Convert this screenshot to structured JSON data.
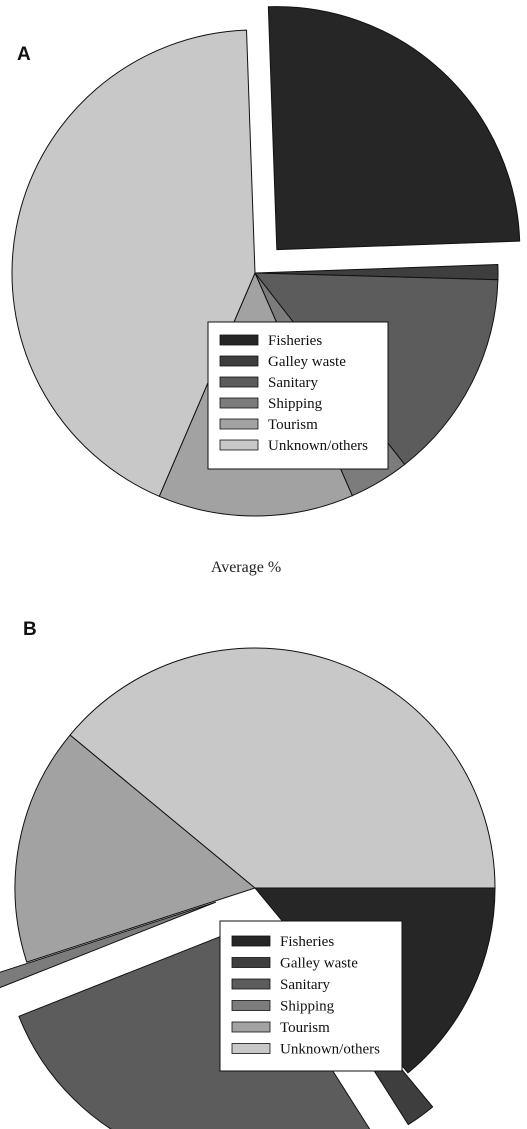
{
  "caption": "Average %",
  "legend": {
    "entries": [
      "Fisheries",
      "Galley waste",
      "Sanitary",
      "Shipping",
      "Tourism",
      "Unknown/others"
    ]
  },
  "colors": {
    "Fisheries": "#262626",
    "Galley waste": "#3e3e3e",
    "Sanitary": "#5c5c5c",
    "Shipping": "#7c7c7c",
    "Tourism": "#a2a2a2",
    "Unknown/others": "#c8c8c8"
  },
  "chart_data": [
    {
      "type": "pie",
      "panel_label": "A",
      "series": [
        {
          "name": "Fisheries",
          "value": 25,
          "exploded": true
        },
        {
          "name": "Galley waste",
          "value": 1,
          "exploded": false
        },
        {
          "name": "Sanitary",
          "value": 14,
          "exploded": false
        },
        {
          "name": "Shipping",
          "value": 4,
          "exploded": false
        },
        {
          "name": "Tourism",
          "value": 13,
          "exploded": false
        },
        {
          "name": "Unknown/others",
          "value": 43,
          "exploded": false
        }
      ],
      "start_angle_deg": -92,
      "legend_placement": "lower-right"
    },
    {
      "type": "pie",
      "panel_label": "B",
      "series": [
        {
          "name": "Fisheries",
          "value": 14,
          "exploded": false
        },
        {
          "name": "Galley waste",
          "value": 2,
          "exploded": true
        },
        {
          "name": "Sanitary",
          "value": 28,
          "exploded": true
        },
        {
          "name": "Shipping",
          "value": 1,
          "exploded": true
        },
        {
          "name": "Tourism",
          "value": 16,
          "exploded": false
        },
        {
          "name": "Unknown/others",
          "value": 39,
          "exploded": false
        }
      ],
      "start_angle_deg": 0,
      "legend_placement": "lower-right"
    }
  ]
}
